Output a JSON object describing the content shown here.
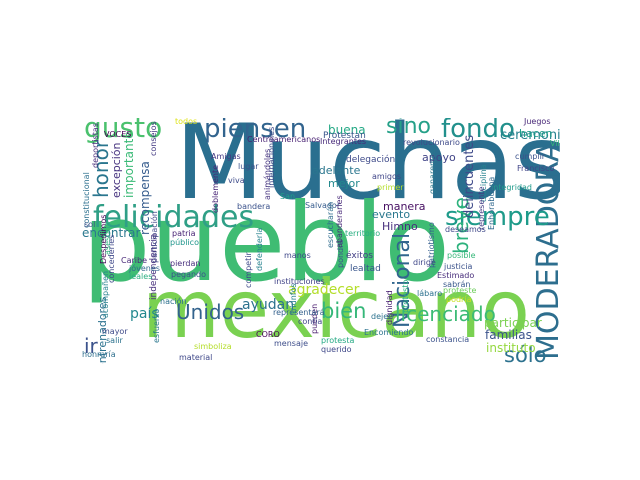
{
  "words": [
    {
      "t": "Muchas",
      "c": "#2a6f8f"
    },
    {
      "t": "pueblo",
      "c": "#3fbc73"
    },
    {
      "t": "mexicano",
      "c": "#7ad151"
    },
    {
      "t": "felicidades",
      "c": "#2f9f86"
    },
    {
      "t": "MODERADORA",
      "c": "#2d6e8e"
    },
    {
      "t": "piensen",
      "c": "#32648e"
    },
    {
      "t": "fondo",
      "c": "#22908c"
    },
    {
      "t": "sino",
      "c": "#25a088"
    },
    {
      "t": "gusto",
      "c": "#4ac16d"
    },
    {
      "t": "siempre",
      "c": "#1e9b8a"
    },
    {
      "t": "Nacional",
      "c": "#31668e"
    },
    {
      "t": "breve",
      "c": "#2db27d"
    },
    {
      "t": "licenciado",
      "c": "#3cbb75"
    },
    {
      "t": "bien",
      "c": "#35b779"
    },
    {
      "t": "Unidos",
      "c": "#33638d"
    },
    {
      "t": "honor",
      "c": "#2a768e"
    },
    {
      "t": "ir",
      "c": "#3b528b"
    },
    {
      "t": "sólo",
      "c": "#2c718e"
    },
    {
      "t": "delincuentes",
      "c": "#3e4a89"
    },
    {
      "t": "ceremonia",
      "c": "#27808e"
    },
    {
      "t": "participar",
      "c": "#7ad151"
    },
    {
      "t": "familias",
      "c": "#3b528b"
    },
    {
      "t": "instituto",
      "c": "#95d840"
    },
    {
      "t": "ayudan",
      "c": "#2c728e"
    },
    {
      "t": "país",
      "c": "#23888e"
    },
    {
      "t": "agradecer",
      "c": "#b5de2b"
    },
    {
      "t": "recompensa",
      "c": "#365c8d"
    },
    {
      "t": "importante",
      "c": "#3aba76"
    },
    {
      "t": "excepción",
      "c": "#46337f"
    },
    {
      "t": "encontrar",
      "c": "#2a788e"
    },
    {
      "t": "buena",
      "c": "#22a884"
    },
    {
      "t": "Protestan",
      "c": "#39568c"
    },
    {
      "t": "adelante",
      "c": "#2a768e"
    },
    {
      "t": "mejor",
      "c": "#23898e"
    },
    {
      "t": "manera",
      "c": "#471063"
    },
    {
      "t": "evento",
      "c": "#2a788e"
    },
    {
      "t": "Himno",
      "c": "#472f7d"
    },
    {
      "t": "apoyo",
      "c": "#414487"
    },
    {
      "t": "entrenadores",
      "c": "#2c728e"
    },
    {
      "t": "hacen",
      "c": "#1f9e89"
    },
    {
      "t": "VOCES",
      "c": "#440154"
    },
    {
      "t": "consejos",
      "c": "#443a83"
    },
    {
      "t": "Juegos",
      "c": "#482878"
    },
    {
      "t": "Villa",
      "c": "#35b779"
    },
    {
      "t": "cumplir",
      "c": "#3b528b"
    },
    {
      "t": "disciplina",
      "c": "#26828e"
    },
    {
      "t": "integridad",
      "c": "#1f9a8a"
    },
    {
      "t": "deportistas",
      "c": "#472d7b"
    },
    {
      "t": "constitucional",
      "c": "#2d708e"
    },
    {
      "t": "independencia",
      "c": "#472f7d"
    },
    {
      "t": "Amigas",
      "c": "#443983"
    },
    {
      "t": "lugar",
      "c": "#3b528b"
    },
    {
      "t": "viva",
      "c": "#3e4c8a"
    },
    {
      "t": "San",
      "c": "#1fa088"
    },
    {
      "t": "delegación",
      "c": "#3e4a89"
    },
    {
      "t": "amigos",
      "c": "#404688"
    },
    {
      "t": "primer",
      "c": "#b5de2b"
    },
    {
      "t": "Salvador",
      "c": "#365c8d"
    },
    {
      "t": "bandera",
      "c": "#3b528b"
    },
    {
      "t": "doblemente",
      "c": "#482576"
    },
    {
      "t": "animándoles",
      "c": "#46337f"
    },
    {
      "t": "internacionales",
      "c": "#3e4989"
    },
    {
      "t": "Centroamericanos",
      "c": "#482173"
    },
    {
      "t": "Integrantes",
      "c": "#472a7a"
    },
    {
      "t": "revolucionario",
      "c": "#3e4a89"
    },
    {
      "t": "Enhorabuena",
      "c": "#31688e"
    },
    {
      "t": "represente",
      "c": "#433e85"
    },
    {
      "t": "protesto",
      "c": "#29af7f"
    },
    {
      "t": "proteste",
      "c": "#6ccd5a"
    },
    {
      "t": "posible",
      "c": "#35b779"
    },
    {
      "t": "justicia",
      "c": "#3b528b"
    },
    {
      "t": "Estimado",
      "c": "#472c7a"
    },
    {
      "t": "sabrán",
      "c": "#38588c"
    },
    {
      "t": "podría",
      "c": "#c8e020"
    },
    {
      "t": "lábaro",
      "c": "#2c718e"
    },
    {
      "t": "patriotismo",
      "c": "#355f8d"
    },
    {
      "t": "territorio",
      "c": "#28ae80"
    },
    {
      "t": "deseamos",
      "c": "#3f4889"
    },
    {
      "t": "lealtad",
      "c": "#39568c"
    },
    {
      "t": "éxitos",
      "c": "#433e85"
    },
    {
      "t": "pondrá",
      "c": "#3b528b"
    },
    {
      "t": "escucharán",
      "c": "#2f6c8e"
    },
    {
      "t": "abanderarles",
      "c": "#472878"
    },
    {
      "t": "ganaremos",
      "c": "#2a778e"
    },
    {
      "t": "Francisco",
      "c": "#404588"
    },
    {
      "t": "dirige",
      "c": "#3f4788"
    },
    {
      "t": "dignidad",
      "c": "#482071"
    },
    {
      "t": "constancia",
      "c": "#3b528b"
    },
    {
      "t": "dejen",
      "c": "#2c728e"
    },
    {
      "t": "Encomiendo",
      "c": "#2c738e"
    },
    {
      "t": "querido",
      "c": "#3f4889"
    },
    {
      "t": "protesta",
      "c": "#23a983"
    },
    {
      "t": "pueden",
      "c": "#481b6d"
    },
    {
      "t": "confía",
      "c": "#404588"
    },
    {
      "t": "representará",
      "c": "#34618d"
    },
    {
      "t": "mensaje",
      "c": "#3d4d8a"
    },
    {
      "t": "CORO",
      "c": "#440154"
    },
    {
      "t": "triunfos",
      "c": "#27808e"
    },
    {
      "t": "competir",
      "c": "#3e4a89"
    },
    {
      "t": "instituciones",
      "c": "#414487"
    },
    {
      "t": "manos",
      "c": "#3f4889"
    },
    {
      "t": "defenderla",
      "c": "#26828e"
    },
    {
      "t": "pegando",
      "c": "#3b528b"
    },
    {
      "t": "pierdan",
      "c": "#472e7c"
    },
    {
      "t": "público",
      "c": "#1f958b"
    },
    {
      "t": "patria",
      "c": "#482475"
    },
    {
      "t": "participación",
      "c": "#404688"
    },
    {
      "t": "jóvenes",
      "c": "#31688e"
    },
    {
      "t": "Caribe",
      "c": "#482878"
    },
    {
      "t": "leales",
      "c": "#28ae80"
    },
    {
      "t": "Despedimos",
      "c": "#450457"
    },
    {
      "t": "concederles",
      "c": "#3f4889"
    },
    {
      "t": "asesoría",
      "c": "#2db27d"
    },
    {
      "t": "nación",
      "c": "#2d708e"
    },
    {
      "t": "acompañen",
      "c": "#26828e"
    },
    {
      "t": "salir",
      "c": "#2c728e"
    },
    {
      "t": "mayor",
      "c": "#3e4a89"
    },
    {
      "t": "honraría",
      "c": "#2e6f8e"
    },
    {
      "t": "esfuerzo",
      "c": "#2a778e"
    },
    {
      "t": "material",
      "c": "#3f4889"
    },
    {
      "t": "simboliza",
      "c": "#b5de2b"
    },
    {
      "t": "sol",
      "c": "#3b528b"
    },
    {
      "t": "todos",
      "c": "#dde318"
    }
  ]
}
